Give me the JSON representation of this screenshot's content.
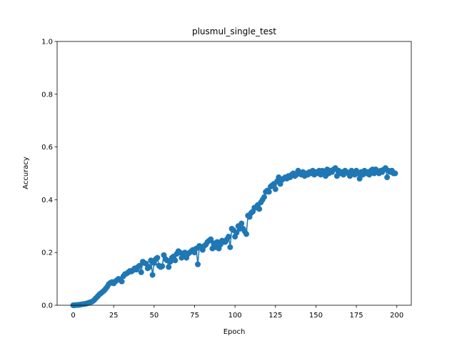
{
  "chart_data": {
    "type": "line",
    "title": "plusmul_single_test",
    "xlabel": "Epoch",
    "ylabel": "Accuracy",
    "x": [
      0,
      1,
      2,
      3,
      4,
      5,
      6,
      7,
      8,
      9,
      10,
      11,
      12,
      13,
      14,
      15,
      16,
      17,
      18,
      19,
      20,
      21,
      22,
      23,
      24,
      25,
      26,
      27,
      28,
      29,
      30,
      31,
      32,
      33,
      34,
      35,
      36,
      37,
      38,
      39,
      40,
      41,
      42,
      43,
      44,
      45,
      46,
      47,
      48,
      49,
      50,
      51,
      52,
      53,
      54,
      55,
      56,
      57,
      58,
      59,
      60,
      61,
      62,
      63,
      64,
      65,
      66,
      67,
      68,
      69,
      70,
      71,
      72,
      73,
      74,
      75,
      76,
      77,
      78,
      79,
      80,
      81,
      82,
      83,
      84,
      85,
      86,
      87,
      88,
      89,
      90,
      91,
      92,
      93,
      94,
      95,
      96,
      97,
      98,
      99,
      100,
      101,
      102,
      103,
      104,
      105,
      106,
      107,
      108,
      109,
      110,
      111,
      112,
      113,
      114,
      115,
      116,
      117,
      118,
      119,
      120,
      121,
      122,
      123,
      124,
      125,
      126,
      127,
      128,
      129,
      130,
      131,
      132,
      133,
      134,
      135,
      136,
      137,
      138,
      139,
      140,
      141,
      142,
      143,
      144,
      145,
      146,
      147,
      148,
      149,
      150,
      151,
      152,
      153,
      154,
      155,
      156,
      157,
      158,
      159,
      160,
      161,
      162,
      163,
      164,
      165,
      166,
      167,
      168,
      169,
      170,
      171,
      172,
      173,
      174,
      175,
      176,
      177,
      178,
      179,
      180,
      181,
      182,
      183,
      184,
      185,
      186,
      187,
      188,
      189,
      190,
      191,
      192,
      193,
      194,
      195,
      196,
      197,
      198,
      199
    ],
    "series": [
      {
        "color": "#1f77b4",
        "values": [
          0,
          0,
          0.001,
          0.001,
          0.002,
          0.003,
          0.004,
          0.005,
          0.006,
          0.008,
          0.01,
          0.012,
          0.015,
          0.02,
          0.027,
          0.033,
          0.04,
          0.045,
          0.05,
          0.055,
          0.062,
          0.07,
          0.08,
          0.085,
          0.088,
          0.083,
          0.09,
          0.095,
          0.1,
          0.098,
          0.09,
          0.11,
          0.118,
          0.12,
          0.125,
          0.13,
          0.128,
          0.133,
          0.14,
          0.135,
          0.145,
          0.15,
          0.125,
          0.165,
          0.16,
          0.158,
          0.14,
          0.145,
          0.17,
          0.115,
          0.16,
          0.175,
          0.18,
          0.15,
          0.145,
          0.148,
          0.19,
          0.175,
          0.17,
          0.145,
          0.165,
          0.18,
          0.185,
          0.17,
          0.195,
          0.205,
          0.2,
          0.18,
          0.19,
          0.2,
          0.18,
          0.195,
          0.2,
          0.205,
          0.21,
          0.2,
          0.215,
          0.155,
          0.225,
          0.22,
          0.21,
          0.225,
          0.23,
          0.24,
          0.245,
          0.25,
          0.215,
          0.235,
          0.22,
          0.24,
          0.215,
          0.23,
          0.245,
          0.24,
          0.24,
          0.25,
          0.26,
          0.22,
          0.29,
          0.285,
          0.26,
          0.275,
          0.3,
          0.29,
          0.31,
          0.29,
          0.28,
          0.27,
          0.34,
          0.335,
          0.35,
          0.355,
          0.37,
          0.37,
          0.38,
          0.365,
          0.39,
          0.4,
          0.41,
          0.43,
          0.435,
          0.43,
          0.45,
          0.455,
          0.46,
          0.44,
          0.47,
          0.485,
          0.46,
          0.475,
          0.48,
          0.485,
          0.48,
          0.49,
          0.485,
          0.495,
          0.5,
          0.49,
          0.495,
          0.51,
          0.5,
          0.495,
          0.505,
          0.49,
          0.5,
          0.495,
          0.505,
          0.5,
          0.51,
          0.495,
          0.505,
          0.5,
          0.51,
          0.495,
          0.51,
          0.505,
          0.49,
          0.515,
          0.5,
          0.51,
          0.505,
          0.515,
          0.52,
          0.49,
          0.51,
          0.5,
          0.505,
          0.495,
          0.51,
          0.505,
          0.5,
          0.49,
          0.51,
          0.505,
          0.495,
          0.51,
          0.5,
          0.48,
          0.505,
          0.495,
          0.51,
          0.5,
          0.505,
          0.495,
          0.51,
          0.515,
          0.5,
          0.515,
          0.505,
          0.5,
          0.51,
          0.505,
          0.515,
          0.52,
          0.485,
          0.51,
          0.505,
          0.51,
          0.5,
          0.5
        ]
      }
    ],
    "xlim": [
      -9.95,
      208.95
    ],
    "xticks": [
      0,
      25,
      50,
      75,
      100,
      125,
      150,
      175,
      200
    ],
    "ylim": [
      0,
      1
    ],
    "yticks": [
      {
        "value": 0,
        "label": "0.0"
      },
      {
        "value": 0.2,
        "label": "0.2"
      },
      {
        "value": 0.4,
        "label": "0.4"
      },
      {
        "value": 0.6,
        "label": "0.6"
      },
      {
        "value": 0.8,
        "label": "0.8"
      },
      {
        "value": 1,
        "label": "1.0"
      }
    ]
  }
}
